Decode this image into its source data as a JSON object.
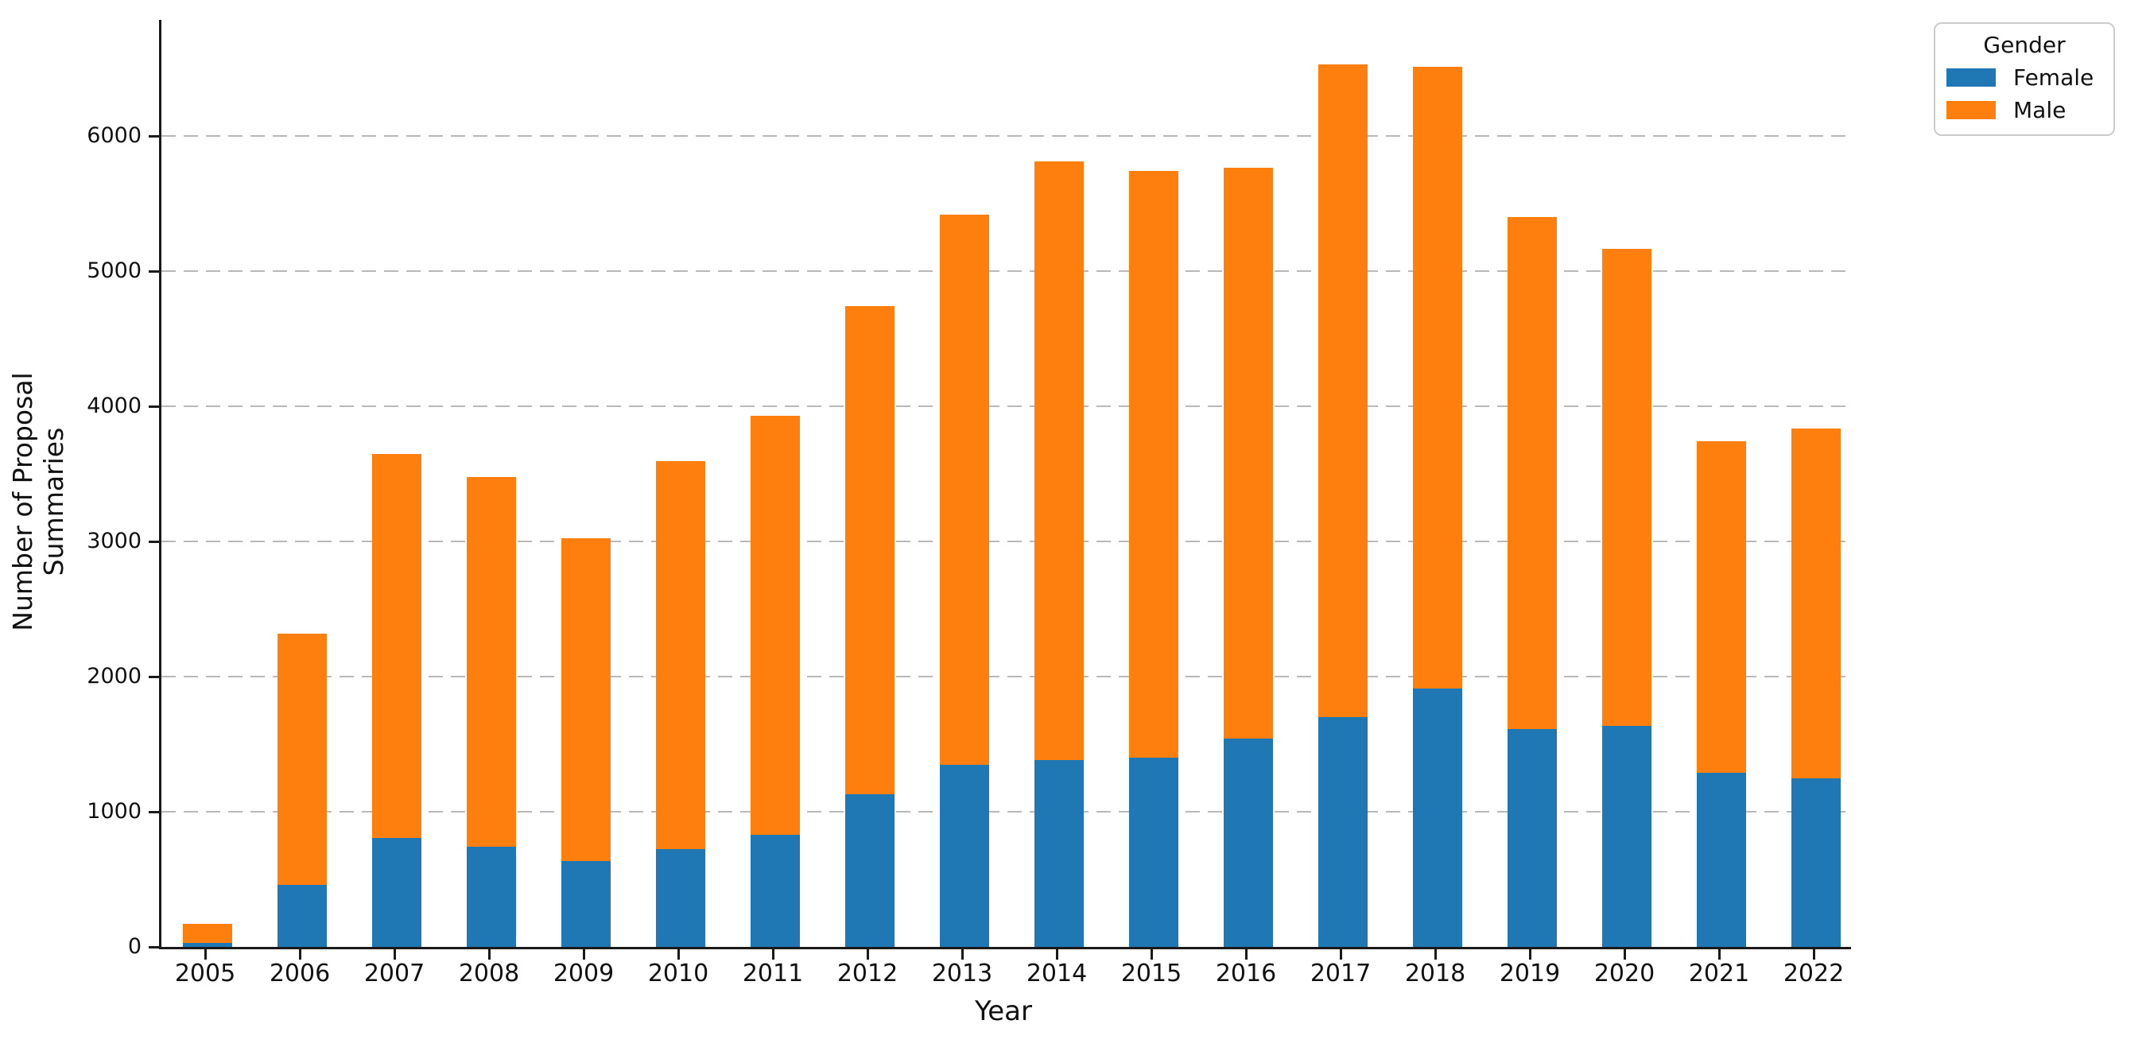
{
  "chart_data": {
    "type": "bar",
    "stacked": true,
    "title": "",
    "xlabel": "Year",
    "ylabel": "Number of Proposal Summaries",
    "categories": [
      "2005",
      "2006",
      "2007",
      "2008",
      "2009",
      "2010",
      "2011",
      "2012",
      "2013",
      "2014",
      "2015",
      "2016",
      "2017",
      "2018",
      "2019",
      "2020",
      "2021",
      "2022"
    ],
    "series": [
      {
        "name": "Female",
        "color": "#1f77b4",
        "values": [
          30,
          460,
          805,
          740,
          635,
          725,
          830,
          1130,
          1345,
          1380,
          1400,
          1540,
          1700,
          1910,
          1615,
          1635,
          1290,
          1250
        ]
      },
      {
        "name": "Male",
        "color": "#ff7f0e",
        "values": [
          140,
          1860,
          2845,
          2740,
          2390,
          2870,
          3100,
          3615,
          4075,
          4435,
          4340,
          4225,
          4830,
          4605,
          3785,
          3530,
          2450,
          2585
        ]
      }
    ],
    "totals": [
      170,
      2320,
      3650,
      3480,
      3025,
      3595,
      3930,
      4745,
      5420,
      5815,
      5740,
      5765,
      6530,
      6515,
      5400,
      5165,
      3740,
      3835
    ],
    "yticks": [
      0,
      1000,
      2000,
      3000,
      4000,
      5000,
      6000
    ],
    "ylim": [
      0,
      6860
    ],
    "grid": "horizontal-dashed",
    "legend": {
      "title": "Gender",
      "position": "upper-right-outside"
    }
  }
}
